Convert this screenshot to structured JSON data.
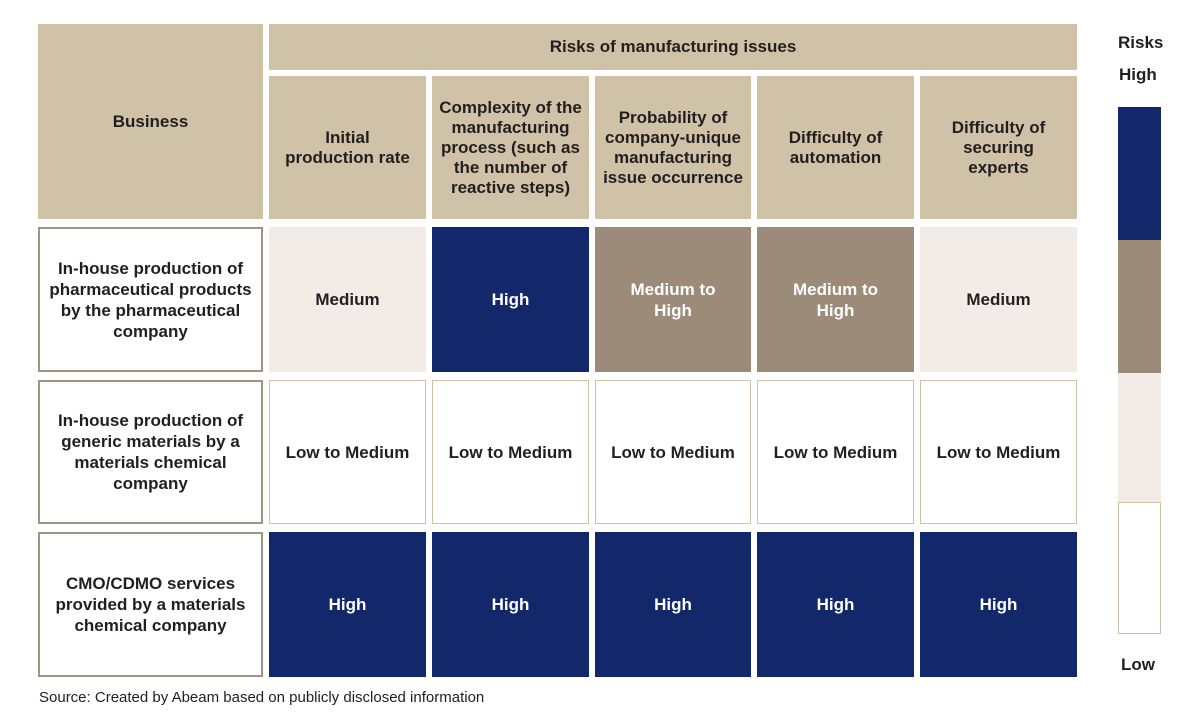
{
  "header": {
    "business": "Business",
    "risks_title": "Risks of manufacturing issues",
    "columns": [
      "Initial production rate",
      "Complexity of the manufacturing process (such as the number of reactive steps)",
      "Probability of company-unique manufacturing issue occurrence",
      "Difficulty of automation",
      "Difficulty of securing experts"
    ]
  },
  "rows": [
    {
      "label": "In-house production of pharmaceutical products by the pharmaceutical company",
      "values": [
        "Medium",
        "High",
        "Medium to High",
        "Medium to High",
        "Medium"
      ]
    },
    {
      "label": "In-house production of generic materials by a materials chemical company",
      "values": [
        "Low to Medium",
        "Low to Medium",
        "Low to Medium",
        "Low to Medium",
        "Low to Medium"
      ]
    },
    {
      "label": "CMO/CDMO services provided by a materials chemical company",
      "values": [
        "High",
        "High",
        "High",
        "High",
        "High"
      ]
    }
  ],
  "legend": {
    "title": "Risks",
    "high": "High",
    "low": "Low",
    "colors": [
      "#13286a",
      "#9c8b79",
      "#f3ece6",
      "#ffffff"
    ]
  },
  "source": "Source: Created by Abeam based on publicly disclosed information"
}
